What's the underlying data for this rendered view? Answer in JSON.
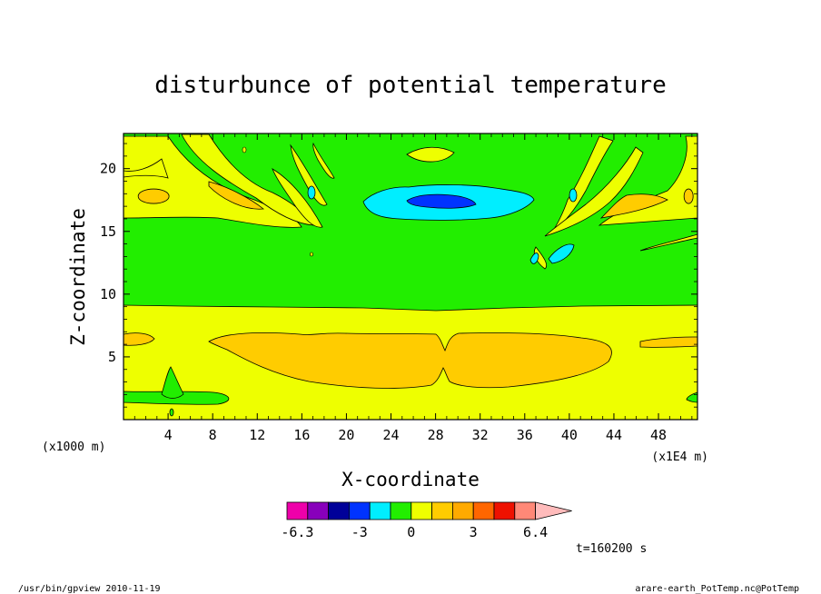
{
  "chart_data": {
    "type": "heatmap",
    "title": "disturbunce of potential temperature",
    "xlabel": "X-coordinate",
    "ylabel": "Z-coordinate",
    "x_units_left": "(x1000 m)",
    "x_units_right": "(x1E4 m)",
    "xlim": [
      0,
      51.5
    ],
    "ylim": [
      0,
      22.8
    ],
    "xticks": [
      "4",
      "8",
      "12",
      "16",
      "20",
      "24",
      "28",
      "32",
      "36",
      "40",
      "44",
      "48"
    ],
    "xtick_values": [
      4,
      8,
      12,
      16,
      20,
      24,
      28,
      32,
      36,
      40,
      44,
      48
    ],
    "yticks": [
      "5",
      "10",
      "15",
      "20"
    ],
    "ytick_values": [
      5,
      10,
      15,
      20
    ],
    "colorbar": {
      "colors": [
        "#ee00aa",
        "#8800bb",
        "#000099",
        "#0033ff",
        "#00eeff",
        "#22ee00",
        "#eeff00",
        "#ffcc00",
        "#ffaa00",
        "#ff6600",
        "#ee1100",
        "#ff8877",
        "#ffbbbb"
      ],
      "labels": [
        "-6.3",
        "-3",
        "0",
        "3",
        "6.4"
      ],
      "label_positions": [
        0.5,
        3.5,
        6,
        9,
        12
      ]
    },
    "regions": [
      {
        "name": "upper-green-layer",
        "level": 0,
        "z": [
          9,
          22.8
        ]
      },
      {
        "name": "lower-yellow-layer",
        "level": 1,
        "z": [
          0,
          9
        ]
      },
      {
        "name": "lower-orange-blob",
        "level": 2,
        "x": [
          8,
          44
        ],
        "z": [
          2.6,
          6.9
        ]
      },
      {
        "name": "cold-core",
        "level": -2,
        "x": [
          23,
          31
        ],
        "z": [
          17,
          18
        ]
      },
      {
        "name": "cold-halo",
        "level": -1,
        "x": [
          21,
          36
        ],
        "z": [
          15.8,
          18.5
        ]
      }
    ],
    "annotation": "t=160200 s"
  },
  "footer": {
    "left": "/usr/bin/gpview   2010-11-19",
    "right": "arare-earth_PotTemp.nc@PotTemp"
  }
}
